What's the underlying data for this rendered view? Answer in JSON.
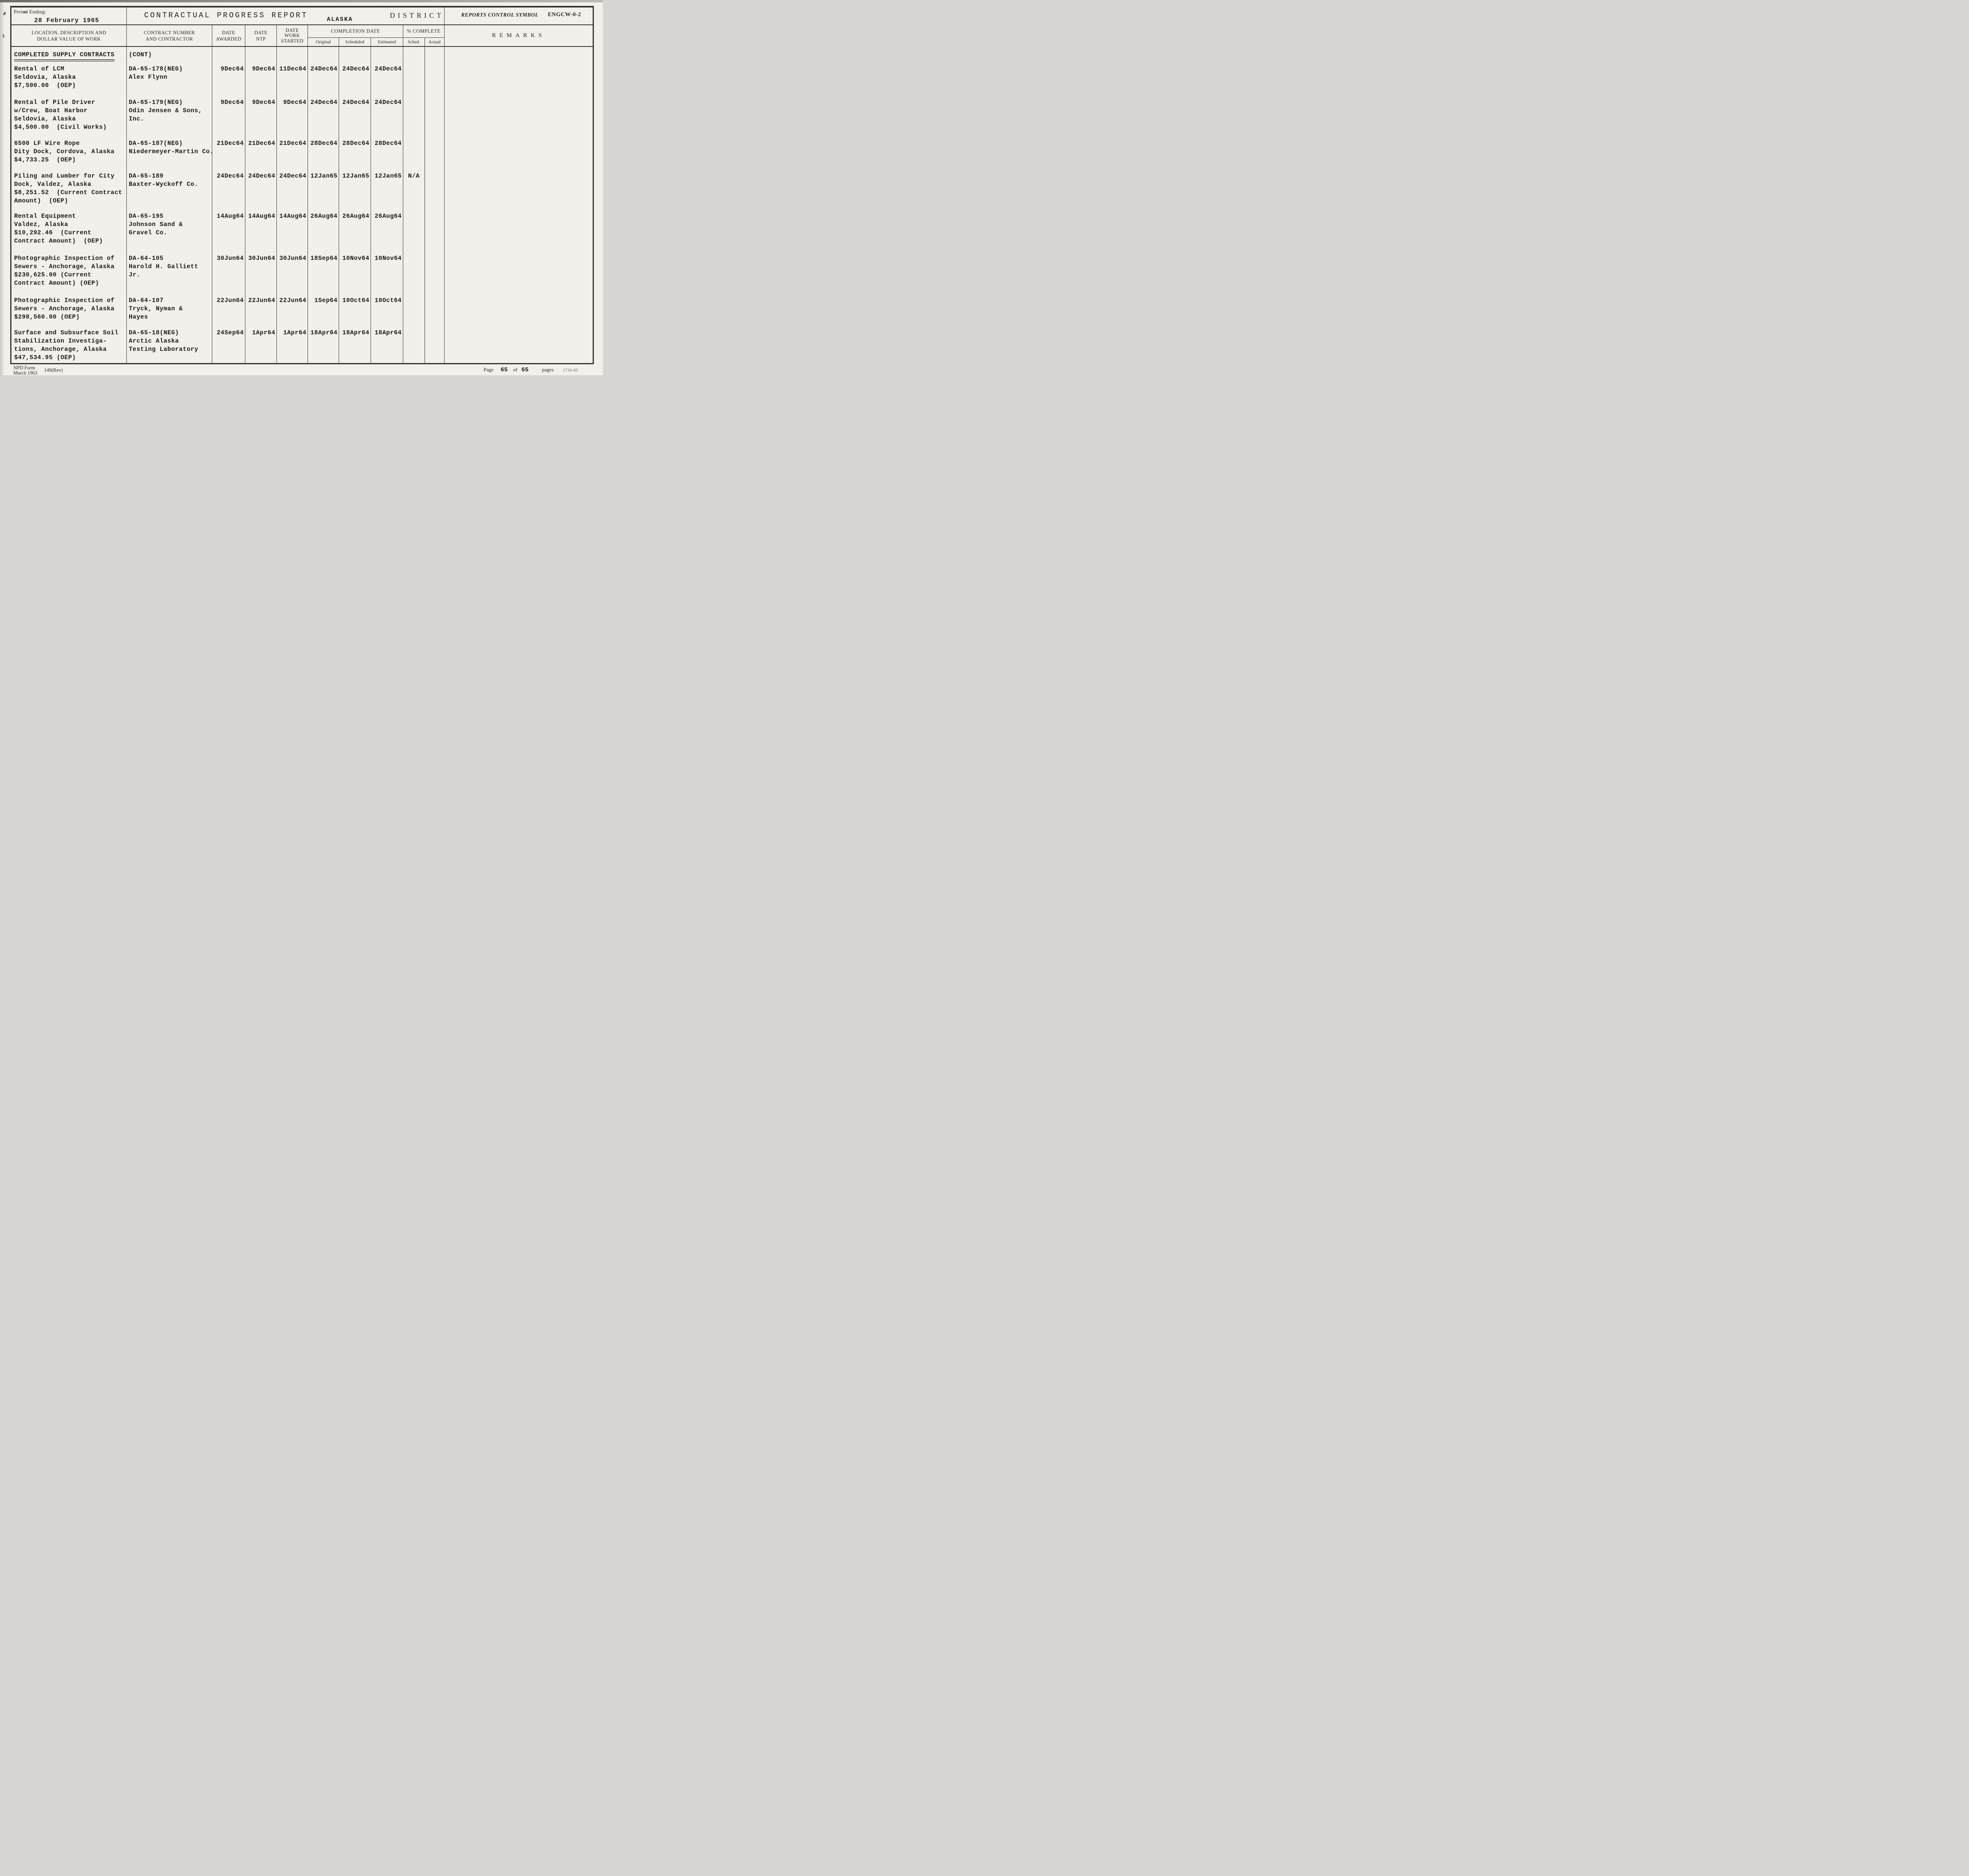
{
  "colors": {
    "paper": "#f2f0ea",
    "ink": "#1c1b18",
    "line": "#35322d"
  },
  "header": {
    "period_ending_label": "Period Ending:",
    "period_ending_value": "28 February 1965",
    "title": "CONTRACTUAL PROGRESS REPORT",
    "district_value": "ALASKA",
    "district_label": "DISTRICT",
    "control_symbol_label": "REPORTS CONTROL SYMBOL",
    "control_symbol_value": "ENGCW-0-2"
  },
  "columns": {
    "location_line1": "LOCATION, DESCRIPTION AND",
    "location_line2": "DOLLAR VALUE OF WORK",
    "contract_line1": "CONTRACT NUMBER",
    "contract_line2": "AND CONTRACTOR",
    "awarded_line1": "DATE",
    "awarded_line2": "AWARDED",
    "ntp_line1": "DATE",
    "ntp_line2": "NTP",
    "started_line1": "DATE",
    "started_line2": "WORK",
    "started_line3": "STARTED",
    "completion": {
      "group": "COMPLETION DATE",
      "original": "Original",
      "scheduled": "Scheduled",
      "estimated": "Estimated"
    },
    "pct": {
      "group": "% COMPLETE",
      "sched": "Sched.",
      "actual": "Actual"
    },
    "remarks": "REMARKS"
  },
  "section": {
    "title": "COMPLETED SUPPLY CONTRACTS",
    "cont": "(CONT)"
  },
  "rows": [
    {
      "location_lines": [
        "Rental of LCM",
        "Seldovia, Alaska",
        "$7,500.00  (OEP)"
      ],
      "contractor_lines": [
        "DA-65-178(NEG)",
        "Alex Flynn"
      ],
      "date_awarded": "9Dec64",
      "date_ntp": "9Dec64",
      "date_work_started": "11Dec64",
      "completion_original": "24Dec64",
      "completion_scheduled": "24Dec64",
      "completion_estimated": "24Dec64",
      "pct_sched": "",
      "pct_actual": "",
      "remarks": ""
    },
    {
      "location_lines": [
        "Rental of Pile Driver",
        "w/Crew, Boat Harbor",
        "Seldovia, Alaska",
        "$4,500.00  (Civil Works)"
      ],
      "contractor_lines": [
        "DA-65-179(NEG)",
        "Odin Jensen & Sons,",
        "Inc."
      ],
      "date_awarded": "9Dec64",
      "date_ntp": "9Dec64",
      "date_work_started": "9Dec64",
      "completion_original": "24Dec64",
      "completion_scheduled": "24Dec64",
      "completion_estimated": "24Dec64",
      "pct_sched": "",
      "pct_actual": "",
      "remarks": ""
    },
    {
      "location_lines": [
        "6500 LF Wire Rope",
        "Dity Dock, Cordova, Alaska",
        "$4,733.25  (OEP)"
      ],
      "contractor_lines": [
        "DA-65-187(NEG)",
        "Niedermeyer-Martin Co."
      ],
      "date_awarded": "21Dec64",
      "date_ntp": "21Dec64",
      "date_work_started": "21Dec64",
      "completion_original": "28Dec64",
      "completion_scheduled": "28Dec64",
      "completion_estimated": "28Dec64",
      "pct_sched": "",
      "pct_actual": "",
      "remarks": ""
    },
    {
      "location_lines": [
        "Piling and Lumber for City",
        "Dock, Valdez, Alaska",
        "$8,251.52  (Current Contract",
        "Amount)  (OEP)"
      ],
      "contractor_lines": [
        "DA-65-189",
        "Baxter-Wyckoff Co."
      ],
      "date_awarded": "24Dec64",
      "date_ntp": "24Dec64",
      "date_work_started": "24Dec64",
      "completion_original": "12Jan65",
      "completion_scheduled": "12Jan65",
      "completion_estimated": "12Jan65",
      "pct_sched": "N/A",
      "pct_actual": "",
      "remarks": ""
    },
    {
      "location_lines": [
        "Rental Equipment",
        "Valdez, Alaska",
        "$10,292.46  (Current",
        "Contract Amount)  (OEP)"
      ],
      "contractor_lines": [
        "DA-65-195",
        "Johnson Sand &",
        "Gravel Co."
      ],
      "date_awarded": "14Aug64",
      "date_ntp": "14Aug64",
      "date_work_started": "14Aug64",
      "completion_original": "26Aug64",
      "completion_scheduled": "26Aug64",
      "completion_estimated": "26Aug64",
      "pct_sched": "",
      "pct_actual": "",
      "remarks": ""
    },
    {
      "location_lines": [
        "Photographic Inspection of",
        "Sewers - Anchorage, Alaska",
        "$230,625.00 (Current",
        "Contract Amount) (OEP)"
      ],
      "contractor_lines": [
        "DA-64-105",
        "Harold H. Galliett",
        "Jr."
      ],
      "date_awarded": "30Jun64",
      "date_ntp": "30Jun64",
      "date_work_started": "30Jun64",
      "completion_original": "18Sep64",
      "completion_scheduled": "10Nov64",
      "completion_estimated": "10Nov64",
      "pct_sched": "",
      "pct_actual": "",
      "remarks": ""
    },
    {
      "location_lines": [
        "Photographic Inspection of",
        "Sewers - Anchorage, Alaska",
        "$298,560.00 (OEP)"
      ],
      "contractor_lines": [
        "DA-64-107",
        "Tryck, Nyman &",
        "Hayes"
      ],
      "date_awarded": "22Jun64",
      "date_ntp": "22Jun64",
      "date_work_started": "22Jun64",
      "completion_original": "1Sep64",
      "completion_scheduled": "10Oct64",
      "completion_estimated": "10Oct64",
      "pct_sched": "",
      "pct_actual": "",
      "remarks": ""
    },
    {
      "location_lines": [
        "Surface and Subsurface Soil",
        "Stabilization Investiga-",
        "tions, Anchorage, Alaska",
        "$47,534.95 (OEP)"
      ],
      "contractor_lines": [
        "DA-65-18(NEG)",
        "Arctic Alaska",
        "Testing Laboratory"
      ],
      "date_awarded": "24Sep64",
      "date_ntp": "1Apr64",
      "date_work_started": "1Apr64",
      "completion_original": "18Apr64",
      "completion_scheduled": "18Apr64",
      "completion_estimated": "18Apr64",
      "pct_sched": "",
      "pct_actual": "",
      "remarks": ""
    }
  ],
  "footer": {
    "form_line1": "NPD Form",
    "form_line2": "March 1963",
    "form_number": "149(Rev)",
    "page_label": "Page",
    "page_current": "65",
    "of_label": "of",
    "page_total": "65",
    "pages_label": "pages",
    "doc_number": "1726-65"
  }
}
